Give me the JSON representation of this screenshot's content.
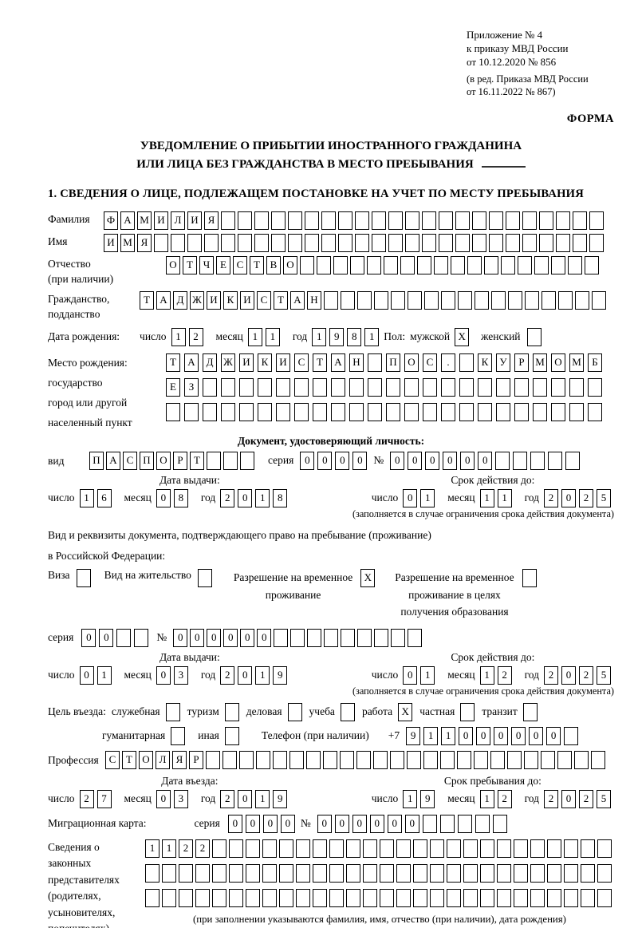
{
  "header": {
    "annex_lines": [
      "Приложение № 4",
      "к приказу МВД России",
      "от 10.12.2020 № 856"
    ],
    "annex_note_lines": [
      "(в ред. Приказа МВД России",
      "от 16.11.2022 № 867)"
    ],
    "form_label": "ФОРМА",
    "title_line1": "УВЕДОМЛЕНИЕ О ПРИБЫТИИ ИНОСТРАННОГО ГРАЖДАНИНА",
    "title_line2": "ИЛИ ЛИЦА БЕЗ ГРАЖДАНСТВА В МЕСТО ПРЕБЫВАНИЯ",
    "section1_title": "1. СВЕДЕНИЯ О ЛИЦЕ, ПОДЛЕЖАЩЕМ ПОСТАНОВКЕ НА УЧЕТ ПО МЕСТУ ПРЕБЫВАНИЯ"
  },
  "date_labels": {
    "day": "число",
    "month": "месяц",
    "year": "год"
  },
  "fields": {
    "surname": {
      "label": "Фамилия",
      "text": "ФАМИЛИЯ",
      "len": 30
    },
    "name": {
      "label": "Имя",
      "text": "ИМЯ",
      "len": 30
    },
    "patronymic": {
      "label_lines": [
        "Отчество",
        "(при наличии)"
      ],
      "text": "ОТЧЕСТВО",
      "len": 26
    },
    "citizenship": {
      "label_lines": [
        "Гражданство,",
        "подданство"
      ],
      "text": "ТАДЖИКИСТАН",
      "len": 28
    },
    "birth_date": {
      "label": "Дата рождения:",
      "day_cells": {
        "text": "12",
        "len": 2
      },
      "month_cells": {
        "text": "11",
        "len": 2
      },
      "year_cells": {
        "text": "1981",
        "len": 4
      }
    },
    "sex": {
      "label": "Пол:",
      "male_label": "мужской",
      "male_checked": "X",
      "female_label": "женский",
      "female_checked": ""
    },
    "birth_place": {
      "label_lines": [
        "Место рождения:",
        "государство",
        "город или другой",
        "населенный пункт"
      ],
      "rows": [
        {
          "text": "ТАДЖИКИСТАН ПОС. КУРМОМБ",
          "len": 24
        },
        {
          "text": "ЕЗ",
          "len": 24
        },
        {
          "text": "",
          "len": 24
        }
      ]
    }
  },
  "doc_identity": {
    "heading": "Документ, удостоверяющий личность:",
    "kind_label": "вид",
    "kind_cells": {
      "text": "ПАСПОРТ",
      "len": 10
    },
    "series_label": "серия",
    "series_cells": {
      "text": "0000",
      "len": 4
    },
    "number_label": "№",
    "number_cells": {
      "text": "000000",
      "len": 11
    },
    "issue": {
      "heading": "Дата выдачи:",
      "day_cells": {
        "text": "16",
        "len": 2
      },
      "month_cells": {
        "text": "08",
        "len": 2
      },
      "year_cells": {
        "text": "2018",
        "len": 4
      }
    },
    "valid": {
      "heading": "Срок действия до:",
      "day_cells": {
        "text": "01",
        "len": 2
      },
      "month_cells": {
        "text": "11",
        "len": 2
      },
      "year_cells": {
        "text": "2025",
        "len": 4
      }
    },
    "note": "(заполняется в случае ограничения срока действия документа)"
  },
  "residence_doc": {
    "intro_line1": "Вид и реквизиты документа, подтверждающего право на пребывание (проживание)",
    "intro_line2": "в Российской Федерации:",
    "options": [
      {
        "label_lines": [
          "Виза"
        ],
        "checked": ""
      },
      {
        "label_lines": [
          "Вид на жительство"
        ],
        "checked": ""
      },
      {
        "label_lines": [
          "Разрешение на временное",
          "проживание"
        ],
        "checked": "X"
      },
      {
        "label_lines": [
          "Разрешение на временное",
          "проживание в целях",
          "получения образования"
        ],
        "checked": ""
      }
    ],
    "series_label": "серия",
    "series_cells": {
      "text": "00",
      "len": 4
    },
    "number_label": "№",
    "number_cells": {
      "text": "000000",
      "len": 15
    },
    "issue": {
      "heading": "Дата выдачи:",
      "day_cells": {
        "text": "01",
        "len": 2
      },
      "month_cells": {
        "text": "03",
        "len": 2
      },
      "year_cells": {
        "text": "2019",
        "len": 4
      }
    },
    "valid": {
      "heading": "Срок действия до:",
      "day_cells": {
        "text": "01",
        "len": 2
      },
      "month_cells": {
        "text": "12",
        "len": 2
      },
      "year_cells": {
        "text": "2025",
        "len": 4
      }
    },
    "note": "(заполняется в случае ограничения срока действия документа)"
  },
  "visit": {
    "purpose_label": "Цель въезда:",
    "purposes": [
      {
        "label": "служебная",
        "checked": ""
      },
      {
        "label": "туризм",
        "checked": ""
      },
      {
        "label": "деловая",
        "checked": ""
      },
      {
        "label": "учеба",
        "checked": ""
      },
      {
        "label": "работа",
        "checked": "X"
      },
      {
        "label": "частная",
        "checked": ""
      },
      {
        "label": "транзит",
        "checked": ""
      },
      {
        "label": "гуманитарная",
        "checked": ""
      },
      {
        "label": "иная",
        "checked": ""
      }
    ],
    "phone_label": "Телефон (при наличии)",
    "phone_prefix": "+7",
    "phone_cells": {
      "text": "911000000",
      "len": 10
    },
    "profession_label": "Профессия",
    "profession_cells": {
      "text": "СТОЛЯР",
      "len": 30
    },
    "entry": {
      "heading": "Дата въезда:",
      "day_cells": {
        "text": "27",
        "len": 2
      },
      "month_cells": {
        "text": "03",
        "len": 2
      },
      "year_cells": {
        "text": "2019",
        "len": 4
      }
    },
    "stay": {
      "heading": "Срок пребывания до:",
      "day_cells": {
        "text": "19",
        "len": 2
      },
      "month_cells": {
        "text": "12",
        "len": 2
      },
      "year_cells": {
        "text": "2025",
        "len": 4
      }
    },
    "migration_card_label": "Миграционная карта:",
    "mc_series_label": "серия",
    "mc_series_cells": {
      "text": "0000",
      "len": 4
    },
    "mc_number_label": "№",
    "mc_number_cells": {
      "text": "000000",
      "len": 11
    }
  },
  "representatives": {
    "label_lines": [
      "Сведения о",
      "законных",
      "представителях",
      "(родителях,",
      "усыновителях,",
      "попечителях)"
    ],
    "rows": [
      {
        "text": "1122",
        "len": 28
      },
      {
        "text": "",
        "len": 28
      },
      {
        "text": "",
        "len": 28
      }
    ],
    "note": "(при заполнении указываются фамилия, имя, отчество (при наличии), дата рождения)"
  }
}
